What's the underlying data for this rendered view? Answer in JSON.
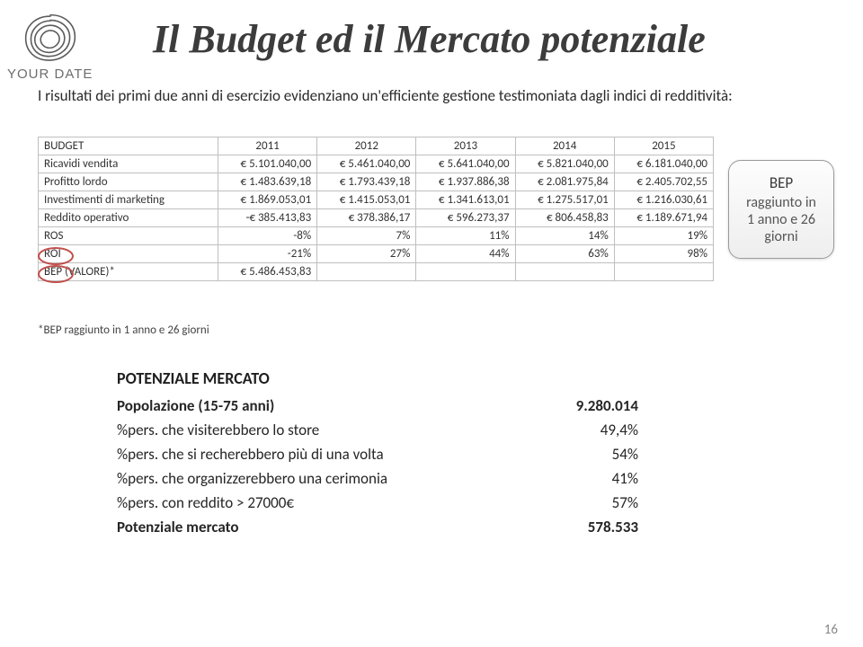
{
  "logo": {
    "text": "YOUR DATE"
  },
  "title": "Il Budget ed il Mercato potenziale",
  "subtitle": "I risultati dei primi due anni di esercizio evidenziano un'efficiente gestione testimoniata dagli indici di redditività:",
  "budget": {
    "header_label": "BUDGET",
    "years": [
      "2011",
      "2012",
      "2013",
      "2014",
      "2015"
    ],
    "rows": [
      {
        "label": "Ricavidi vendita",
        "values": [
          "€ 5.101.040,00",
          "€ 5.461.040,00",
          "€ 5.641.040,00",
          "€ 5.821.040,00",
          "€ 6.181.040,00"
        ]
      },
      {
        "label": "Profitto lordo",
        "values": [
          "€ 1.483.639,18",
          "€ 1.793.439,18",
          "€ 1.937.886,38",
          "€ 2.081.975,84",
          "€ 2.405.702,55"
        ]
      },
      {
        "label": "Investimenti di marketing",
        "values": [
          "€ 1.869.053,01",
          "€ 1.415.053,01",
          "€ 1.341.613,01",
          "€ 1.275.517,01",
          "€ 1.216.030,61"
        ]
      },
      {
        "label": "Reddito operativo",
        "values": [
          "-€ 385.413,83",
          "€ 378.386,17",
          "€ 596.273,37",
          "€ 806.458,83",
          "€ 1.189.671,94"
        ]
      },
      {
        "label": "ROS",
        "values": [
          "-8%",
          "7%",
          "11%",
          "14%",
          "19%"
        ]
      },
      {
        "label": "ROI",
        "values": [
          "-21%",
          "27%",
          "44%",
          "63%",
          "98%"
        ]
      },
      {
        "label": "BEP (VALORE)*",
        "values": [
          "€ 5.486.453,83",
          "",
          "",
          "",
          ""
        ]
      }
    ]
  },
  "bep_note": "*BEP raggiunto in 1 anno e 26 giorni",
  "bep_box": {
    "head": "BEP",
    "line1": "raggiunto in",
    "line2": "1 anno e 26",
    "line3": "giorni"
  },
  "potential": {
    "title": "POTENZIALE MERCATO",
    "rows": [
      {
        "label": "Popolazione (15-75 anni)",
        "value": "9.280.014",
        "bold": true
      },
      {
        "label": "%pers. che visiterebbero lo store",
        "value": "49,4%",
        "bold": false
      },
      {
        "label": "%pers. che si recherebbero più di una volta",
        "value": "54%",
        "bold": false
      },
      {
        "label": "%pers. che organizzerebbero una cerimonia",
        "value": "41%",
        "bold": false
      },
      {
        "label": "%pers. con reddito > 27000€",
        "value": "57%",
        "bold": false
      },
      {
        "label": "Potenziale mercato",
        "value": "578.533",
        "bold": true
      }
    ]
  },
  "page_number": "16",
  "style": {
    "circle_color": "#c0504d",
    "border_color": "#bfbfbf"
  }
}
